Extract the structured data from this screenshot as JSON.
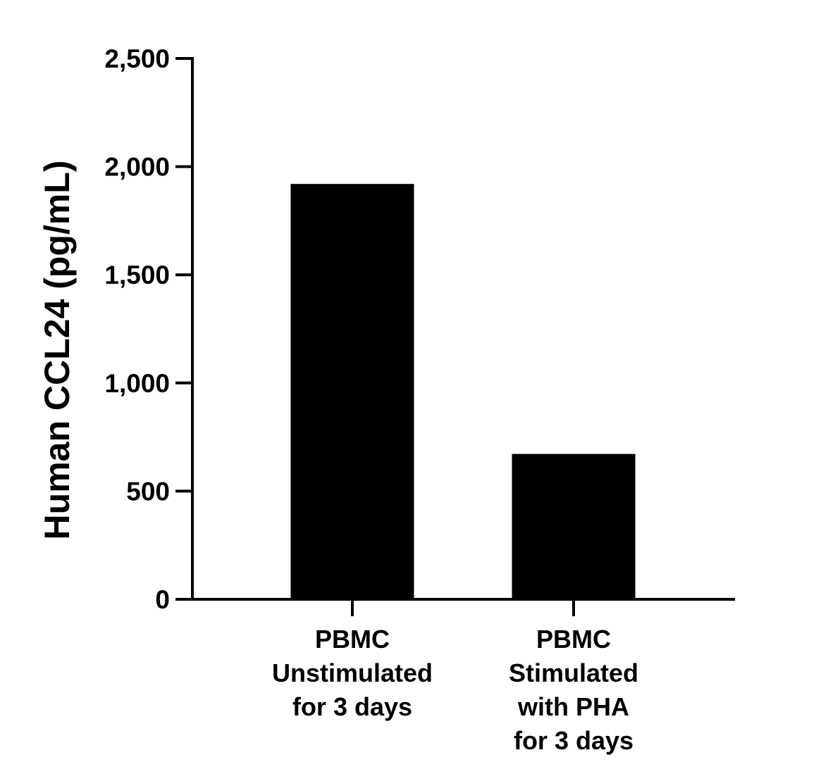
{
  "chart_data": {
    "type": "bar",
    "categories": [
      [
        "PBMC",
        "Unstimulated",
        "for 3 days"
      ],
      [
        "PBMC",
        "Stimulated",
        "with PHA",
        "for 3 days"
      ]
    ],
    "values": [
      1920,
      672
    ],
    "title": "",
    "xlabel": "",
    "ylabel": "Human CCL24 (pg/mL)",
    "ylim": [
      0,
      2500
    ],
    "yticks": [
      0,
      500,
      1000,
      1500,
      2000,
      2500
    ],
    "ytick_labels": [
      "0",
      "500",
      "1,000",
      "1,500",
      "2,000",
      "2,500"
    ],
    "bar_color": "#000000",
    "grid": false,
    "legend": "none"
  }
}
